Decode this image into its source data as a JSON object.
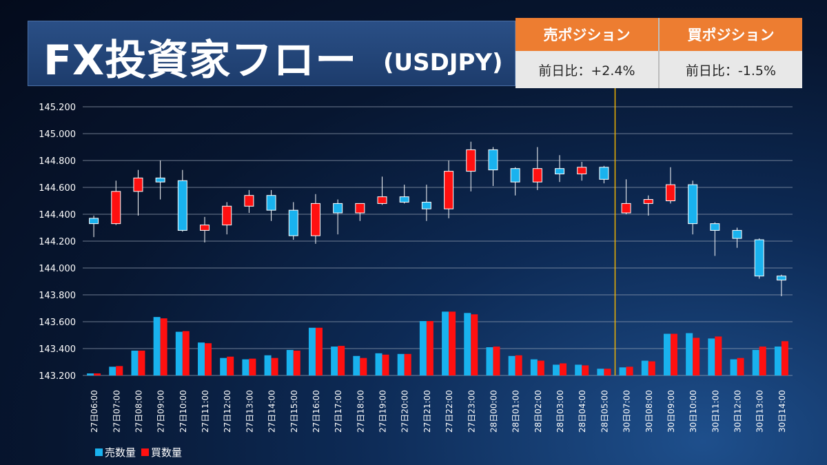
{
  "header": {
    "title_main": "FX投資家フロー",
    "title_sub": "(USDJPY)"
  },
  "positions": {
    "sell_label": "売ポジション",
    "sell_change": "前日比：+2.4%",
    "buy_label": "買ポジション",
    "buy_change": "前日比：-1.5%"
  },
  "legend": {
    "sell_volume": "売数量",
    "buy_volume": "買数量"
  },
  "colors": {
    "up_candle": "#ff1010",
    "down_candle": "#19b2ee",
    "sell_bar": "#19b2ee",
    "buy_bar": "#ff1010",
    "marker_line": "#f2b400",
    "grid": "#9aa6b8"
  },
  "chart_data": {
    "type": "candlestick+bar",
    "title": "",
    "xlabel": "",
    "ylabel": "",
    "ylim": [
      143.2,
      145.2
    ],
    "yticks": [
      "143.200",
      "143.400",
      "143.600",
      "143.800",
      "144.000",
      "144.200",
      "144.400",
      "144.600",
      "144.800",
      "145.000",
      "145.200"
    ],
    "grid": true,
    "legend_position": "bottom-left",
    "marker_after_category": "28日05:00",
    "categories": [
      "27日06:00",
      "27日07:00",
      "27日08:00",
      "27日09:00",
      "27日10:00",
      "27日11:00",
      "27日12:00",
      "27日13:00",
      "27日14:00",
      "27日15:00",
      "27日16:00",
      "27日17:00",
      "27日18:00",
      "27日19:00",
      "27日20:00",
      "27日21:00",
      "27日22:00",
      "27日23:00",
      "28日00:00",
      "28日01:00",
      "28日02:00",
      "28日03:00",
      "28日04:00",
      "28日05:00",
      "30日07:00",
      "30日08:00",
      "30日09:00",
      "30日10:00",
      "30日11:00",
      "30日12:00",
      "30日13:00",
      "30日14:00"
    ],
    "ohlc": [
      {
        "open": 144.37,
        "high": 144.39,
        "low": 144.23,
        "close": 144.33
      },
      {
        "open": 144.33,
        "high": 144.65,
        "low": 144.32,
        "close": 144.57
      },
      {
        "open": 144.57,
        "high": 144.73,
        "low": 144.39,
        "close": 144.67
      },
      {
        "open": 144.67,
        "high": 144.8,
        "low": 144.51,
        "close": 144.64
      },
      {
        "open": 144.65,
        "high": 144.73,
        "low": 144.27,
        "close": 144.28
      },
      {
        "open": 144.28,
        "high": 144.38,
        "low": 144.19,
        "close": 144.32
      },
      {
        "open": 144.32,
        "high": 144.49,
        "low": 144.25,
        "close": 144.46
      },
      {
        "open": 144.46,
        "high": 144.58,
        "low": 144.41,
        "close": 144.54
      },
      {
        "open": 144.54,
        "high": 144.58,
        "low": 144.35,
        "close": 144.43
      },
      {
        "open": 144.43,
        "high": 144.49,
        "low": 144.21,
        "close": 144.24
      },
      {
        "open": 144.24,
        "high": 144.55,
        "low": 144.18,
        "close": 144.48
      },
      {
        "open": 144.48,
        "high": 144.51,
        "low": 144.25,
        "close": 144.41
      },
      {
        "open": 144.41,
        "high": 144.48,
        "low": 144.35,
        "close": 144.48
      },
      {
        "open": 144.48,
        "high": 144.68,
        "low": 144.47,
        "close": 144.53
      },
      {
        "open": 144.53,
        "high": 144.62,
        "low": 144.48,
        "close": 144.49
      },
      {
        "open": 144.49,
        "high": 144.62,
        "low": 144.35,
        "close": 144.44
      },
      {
        "open": 144.44,
        "high": 144.8,
        "low": 144.37,
        "close": 144.72
      },
      {
        "open": 144.72,
        "high": 144.94,
        "low": 144.57,
        "close": 144.88
      },
      {
        "open": 144.88,
        "high": 144.9,
        "low": 144.61,
        "close": 144.73
      },
      {
        "open": 144.74,
        "high": 144.75,
        "low": 144.54,
        "close": 144.64
      },
      {
        "open": 144.64,
        "high": 144.9,
        "low": 144.58,
        "close": 144.74
      },
      {
        "open": 144.74,
        "high": 144.84,
        "low": 144.64,
        "close": 144.7
      },
      {
        "open": 144.7,
        "high": 144.79,
        "low": 144.65,
        "close": 144.75
      },
      {
        "open": 144.75,
        "high": 144.76,
        "low": 144.63,
        "close": 144.66
      },
      {
        "open": 144.41,
        "high": 144.66,
        "low": 144.4,
        "close": 144.48
      },
      {
        "open": 144.48,
        "high": 144.54,
        "low": 144.39,
        "close": 144.51
      },
      {
        "open": 144.5,
        "high": 144.75,
        "low": 144.48,
        "close": 144.62
      },
      {
        "open": 144.62,
        "high": 144.65,
        "low": 144.25,
        "close": 144.33
      },
      {
        "open": 144.33,
        "high": 144.34,
        "low": 144.09,
        "close": 144.28
      },
      {
        "open": 144.28,
        "high": 144.3,
        "low": 144.15,
        "close": 144.22
      },
      {
        "open": 144.21,
        "high": 144.22,
        "low": 143.92,
        "close": 143.94
      },
      {
        "open": 143.94,
        "high": 143.95,
        "low": 143.79,
        "close": 143.91
      }
    ],
    "series": [
      {
        "name": "売数量",
        "values": [
          143.215,
          143.265,
          143.385,
          143.635,
          143.525,
          143.445,
          143.33,
          143.32,
          143.35,
          143.39,
          143.555,
          143.415,
          143.345,
          143.365,
          143.36,
          143.605,
          143.675,
          143.665,
          143.41,
          143.345,
          143.32,
          143.28,
          143.28,
          143.25,
          143.26,
          143.31,
          143.51,
          143.515,
          143.475,
          143.32,
          143.39,
          143.415
        ]
      },
      {
        "name": "買数量",
        "values": [
          143.215,
          143.27,
          143.385,
          143.625,
          143.53,
          143.44,
          143.34,
          143.325,
          143.33,
          143.385,
          143.555,
          143.42,
          143.33,
          143.355,
          143.36,
          143.605,
          143.675,
          143.655,
          143.415,
          143.35,
          143.31,
          143.29,
          143.275,
          143.25,
          143.265,
          143.305,
          143.51,
          143.48,
          143.49,
          143.33,
          143.415,
          143.455
        ]
      }
    ]
  }
}
